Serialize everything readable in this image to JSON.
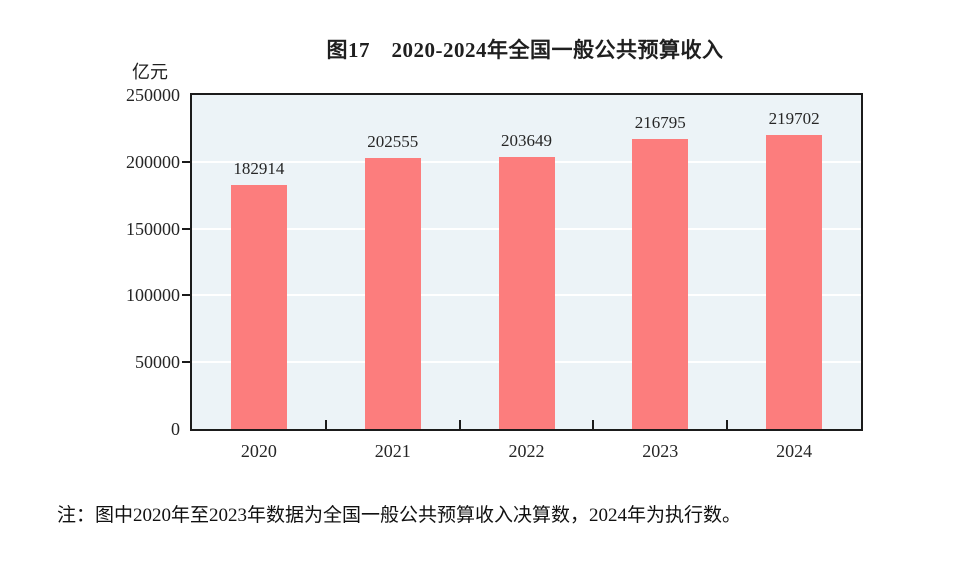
{
  "title": "图17　2020-2024年全国一般公共预算收入",
  "unit_label": "亿元",
  "note": "注：图中2020年至2023年数据为全国一般公共预算收入决算数，2024年为执行数。",
  "colors": {
    "bar": "#fc7d7d",
    "plot_background": "#ecf3f7",
    "gridline": "#ffffff",
    "frame": "#1b1b1b",
    "text": "#262626"
  },
  "chart_data": {
    "type": "bar",
    "title": "图17　2020-2024年全国一般公共预算收入",
    "categories": [
      "2020",
      "2021",
      "2022",
      "2023",
      "2024"
    ],
    "values": [
      182914,
      202555,
      203649,
      216795,
      219702
    ],
    "data_labels": [
      "182914",
      "202555",
      "203649",
      "216795",
      "219702"
    ],
    "xlabel": "",
    "ylabel": "亿元",
    "ylim": [
      0,
      250000
    ],
    "yticks": [
      0,
      50000,
      100000,
      150000,
      200000,
      250000
    ],
    "grid": true,
    "legend": false,
    "bar_color": "#fc7d7d",
    "plot_background": "#ecf3f7"
  }
}
